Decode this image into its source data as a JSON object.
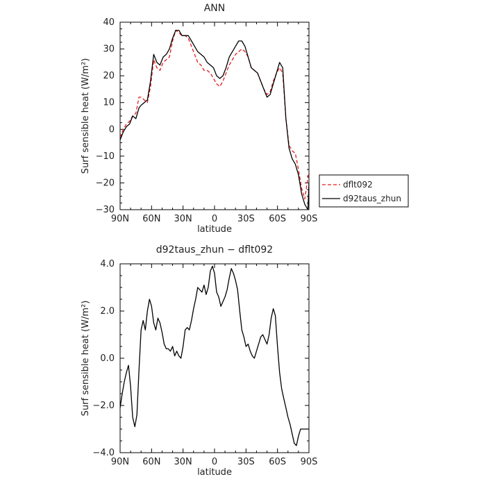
{
  "chart_data": [
    {
      "type": "line",
      "title": "ANN",
      "xlabel": "latitude",
      "ylabel": "Surf sensible heat (W/m²)",
      "xlim": [
        90,
        -90
      ],
      "ylim": [
        -30,
        40
      ],
      "x_ticks": [
        90,
        60,
        30,
        0,
        -30,
        -60,
        -90
      ],
      "x_tick_labels": [
        "90N",
        "60N",
        "30N",
        "0",
        "30S",
        "60S",
        "90S"
      ],
      "y_ticks": [
        -30,
        -20,
        -10,
        0,
        10,
        20,
        30,
        40
      ],
      "y_tick_labels": [
        "−30",
        "−20",
        "−10",
        "0",
        "10",
        "20",
        "30",
        "40"
      ],
      "legend_position": "right",
      "x": [
        90,
        87,
        84,
        81,
        78,
        75,
        72,
        70,
        67,
        64,
        61,
        58,
        55,
        52,
        49,
        46,
        43,
        40,
        37,
        34,
        31,
        28,
        25,
        22,
        19,
        16,
        13,
        10,
        7,
        4,
        1,
        -2,
        -5,
        -8,
        -11,
        -14,
        -17,
        -20,
        -23,
        -26,
        -29,
        -32,
        -35,
        -38,
        -41,
        -44,
        -47,
        -50,
        -53,
        -56,
        -59,
        -62,
        -65,
        -68,
        -71,
        -74,
        -77,
        -80,
        -83,
        -86,
        -89,
        -90
      ],
      "series": [
        {
          "name": "dflt092",
          "color": "#e41a1c",
          "dash": "dashed",
          "values": [
            -3,
            0,
            2,
            3,
            5,
            6,
            12,
            12,
            11,
            10,
            16,
            26,
            23,
            22,
            25,
            26,
            27,
            33,
            37,
            36,
            35,
            35,
            34,
            31,
            28,
            25,
            24,
            22,
            22,
            21,
            19,
            17,
            16,
            18,
            21,
            24,
            26,
            28,
            29,
            30,
            29,
            27,
            23,
            22,
            21,
            18,
            15,
            13,
            14,
            18,
            21,
            23,
            21,
            4,
            -6,
            -8,
            -9,
            -15,
            -22,
            -26,
            -18,
            -16
          ]
        },
        {
          "name": "d92taus_zhun",
          "color": "#000000",
          "dash": "solid",
          "values": [
            -4,
            -1,
            1,
            2,
            5,
            4,
            8,
            9,
            10,
            11,
            18,
            28,
            25,
            24,
            27,
            28,
            30,
            34,
            37,
            37,
            35,
            35,
            35,
            33,
            31,
            29,
            28,
            27,
            25,
            24,
            23,
            20,
            19,
            20,
            23,
            27,
            29,
            31,
            33,
            33,
            31,
            27,
            23,
            22,
            21,
            18,
            15,
            12,
            13,
            17,
            21,
            25,
            23,
            4,
            -7,
            -11,
            -13,
            -17,
            -24,
            -28,
            -30,
            -20
          ]
        }
      ]
    },
    {
      "type": "line",
      "title": "d92taus_zhun − dflt092",
      "xlabel": "latitude",
      "ylabel": "Surf sensible heat (W/m²)",
      "xlim": [
        90,
        -90
      ],
      "ylim": [
        -4,
        4
      ],
      "x_ticks": [
        90,
        60,
        30,
        0,
        -30,
        -60,
        -90
      ],
      "x_tick_labels": [
        "90N",
        "60N",
        "30N",
        "0",
        "30S",
        "60S",
        "90S"
      ],
      "y_ticks": [
        -4,
        -2,
        0,
        2,
        4
      ],
      "y_tick_labels": [
        "−4.0",
        "−2.0",
        "0.0",
        "2.0",
        "4.0"
      ],
      "series": [
        {
          "color": "#000000",
          "x": [
            90,
            88,
            86,
            84,
            82,
            80,
            78,
            76,
            74,
            72,
            70,
            68,
            66,
            64,
            62,
            60,
            58,
            56,
            54,
            52,
            50,
            48,
            46,
            44,
            42,
            40,
            38,
            36,
            34,
            32,
            30,
            28,
            26,
            24,
            22,
            20,
            18,
            16,
            14,
            12,
            10,
            8,
            6,
            4,
            2,
            0,
            -2,
            -4,
            -6,
            -8,
            -10,
            -12,
            -14,
            -16,
            -18,
            -20,
            -22,
            -24,
            -26,
            -28,
            -30,
            -32,
            -34,
            -36,
            -38,
            -40,
            -42,
            -44,
            -46,
            -48,
            -50,
            -52,
            -54,
            -56,
            -58,
            -60,
            -62,
            -64,
            -66,
            -68,
            -70,
            -72,
            -74,
            -76,
            -78,
            -80,
            -82,
            -84,
            -86,
            -88,
            -90
          ],
          "values": [
            -2.1,
            -1.5,
            -1.0,
            -0.6,
            -0.3,
            -1.2,
            -2.5,
            -2.9,
            -2.4,
            -0.5,
            1.2,
            1.6,
            1.2,
            2.0,
            2.5,
            2.2,
            1.5,
            1.2,
            1.7,
            1.5,
            1.1,
            0.6,
            0.4,
            0.4,
            0.3,
            0.5,
            0.1,
            0.3,
            0.1,
            0.0,
            0.5,
            1.2,
            1.3,
            1.2,
            1.6,
            2.1,
            2.5,
            3.0,
            2.9,
            2.8,
            3.1,
            2.7,
            3.0,
            3.7,
            3.9,
            3.6,
            2.8,
            2.6,
            2.2,
            2.4,
            2.6,
            2.9,
            3.4,
            3.8,
            3.6,
            3.3,
            2.9,
            2.0,
            1.2,
            0.9,
            0.5,
            0.6,
            0.3,
            0.1,
            0.0,
            0.3,
            0.6,
            0.9,
            1.0,
            0.8,
            0.6,
            1.0,
            1.7,
            2.1,
            1.8,
            0.5,
            -0.6,
            -1.3,
            -1.7,
            -2.1,
            -2.5,
            -2.8,
            -3.2,
            -3.6,
            -3.7,
            -3.3,
            -3.0,
            -3.0,
            -3.0,
            -3.0,
            -3.0
          ]
        }
      ]
    }
  ]
}
